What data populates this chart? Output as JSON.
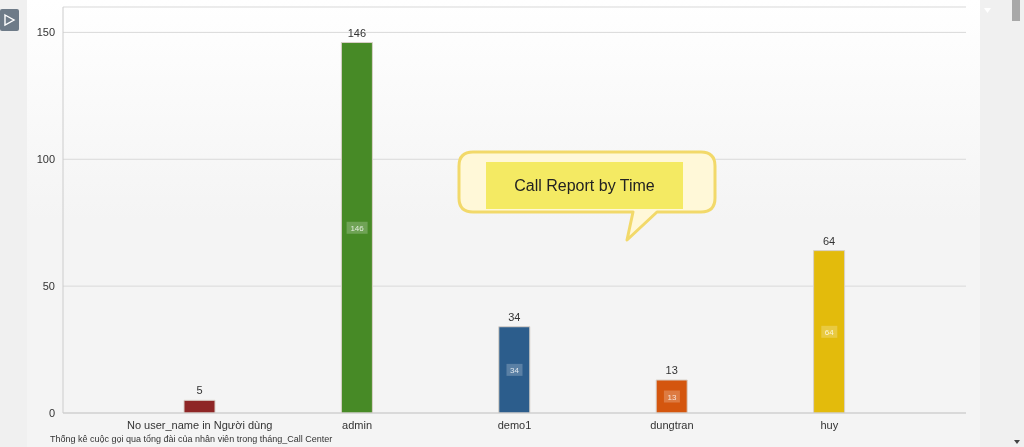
{
  "chart_data": {
    "type": "bar",
    "categories": [
      "No user_name in Người dùng",
      "admin",
      "demo1",
      "dungtran",
      "huy"
    ],
    "values": [
      5,
      146,
      34,
      13,
      64
    ],
    "colors": [
      "#8e2626",
      "#478a26",
      "#2c5d8c",
      "#d4560e",
      "#e3bb0c"
    ],
    "ylim": [
      0,
      160
    ],
    "yticks": [
      0,
      50,
      100,
      150
    ],
    "grid": "y",
    "data_labels": true,
    "annotations": [
      "Call Report by Time",
      "Thống kê cuộc gọi qua tổng đài của nhân viên trong tháng_Call Center",
      {
        "text": "146",
        "x": "admin",
        "y": 73
      },
      {
        "text": "34",
        "x": "demo1",
        "y": 17
      },
      {
        "text": "13",
        "x": "dungtran",
        "y": 6.5
      },
      {
        "text": "64",
        "x": "huy",
        "y": 32
      }
    ]
  }
}
